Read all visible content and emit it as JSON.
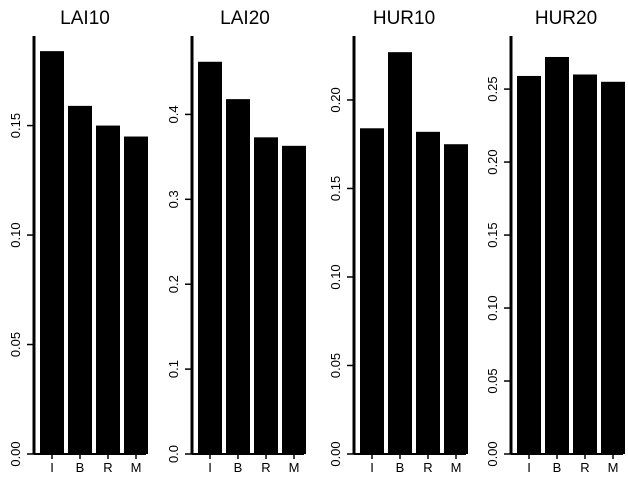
{
  "chart_data": [
    {
      "type": "bar",
      "title": "LAI10",
      "categories": [
        "I",
        "B",
        "R",
        "M"
      ],
      "values": [
        0.184,
        0.159,
        0.15,
        0.145
      ],
      "ylim": [
        0,
        0.19
      ],
      "yticks": [
        0.0,
        0.05,
        0.1,
        0.15
      ],
      "ytick_labels": [
        "0.00",
        "0.05",
        "0.10",
        "0.15"
      ],
      "bar_color": "#000000"
    },
    {
      "type": "bar",
      "title": "LAI20",
      "categories": [
        "I",
        "B",
        "R",
        "M"
      ],
      "values": [
        0.462,
        0.418,
        0.373,
        0.363
      ],
      "ylim": [
        0,
        0.49
      ],
      "yticks": [
        0.0,
        0.1,
        0.2,
        0.3,
        0.4
      ],
      "ytick_labels": [
        "0.0",
        "0.1",
        "0.2",
        "0.3",
        "0.4"
      ],
      "bar_color": "#000000"
    },
    {
      "type": "bar",
      "title": "HUR10",
      "categories": [
        "I",
        "B",
        "R",
        "M"
      ],
      "values": [
        0.184,
        0.227,
        0.182,
        0.175
      ],
      "ylim": [
        0,
        0.235
      ],
      "yticks": [
        0.0,
        0.05,
        0.1,
        0.15,
        0.2
      ],
      "ytick_labels": [
        "0.00",
        "0.05",
        "0.10",
        "0.15",
        "0.20"
      ],
      "bar_color": "#000000"
    },
    {
      "type": "bar",
      "title": "HUR20",
      "categories": [
        "I",
        "B",
        "R",
        "M"
      ],
      "values": [
        0.259,
        0.272,
        0.26,
        0.255
      ],
      "ylim": [
        0,
        0.285
      ],
      "yticks": [
        0.0,
        0.05,
        0.1,
        0.15,
        0.2,
        0.25
      ],
      "ytick_labels": [
        "0.00",
        "0.05",
        "0.10",
        "0.15",
        "0.20",
        "0.25"
      ],
      "bar_color": "#000000"
    }
  ]
}
